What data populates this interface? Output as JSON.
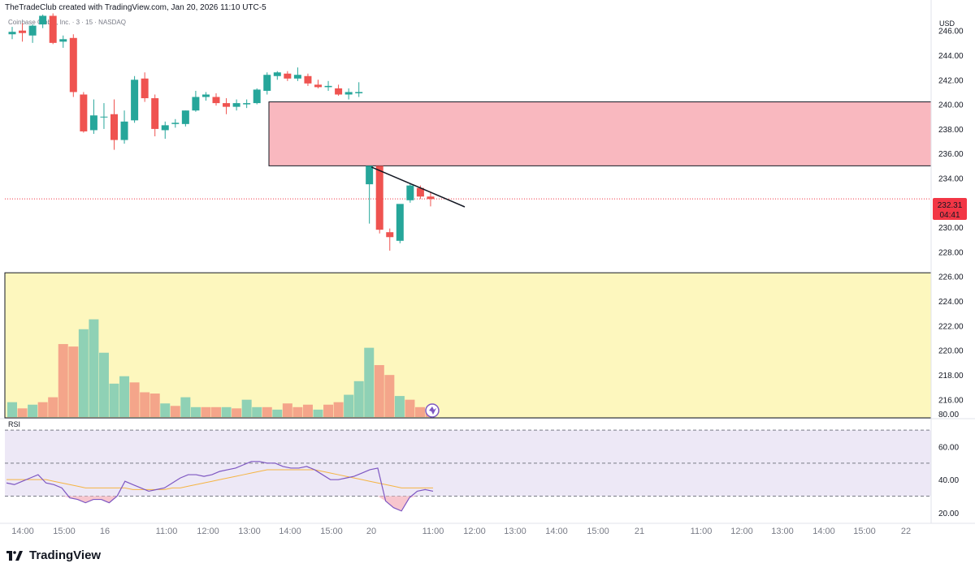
{
  "header": {
    "attribution": "TheTradeClub created with TradingView.com, Jan 20, 2026 11:10 UTC-5",
    "symbol_line": "Coinbase Global, Inc. · 3 · 15 · NASDAQ"
  },
  "footer": {
    "brand": "TradingView"
  },
  "price_axis": {
    "currency": "USD"
  },
  "rsi_panel": {
    "label": "RSI"
  },
  "colors": {
    "up": "#26a69a",
    "down": "#ef5350",
    "volume_up": "#8fd1b5",
    "volume_down": "#f4a58a",
    "supply_zone": "#f9b8bf",
    "demand_zone": "#fdf7be",
    "rsi_band": "#ede8f6",
    "rsi_line": "#7e57c2",
    "rsi_ma": "#f5b443",
    "price_tag": "#f23645"
  },
  "chart_data": {
    "type": "candlestick",
    "price_ticks": [
      "246.00",
      "244.00",
      "242.00",
      "240.00",
      "238.00",
      "236.00",
      "234.00",
      "232.00",
      "230.00",
      "228.00",
      "226.00",
      "224.00",
      "222.00",
      "220.00",
      "218.00",
      "216.00"
    ],
    "price_ylim": [
      214.5,
      247.3
    ],
    "current_price": "232.31",
    "countdown": "04:41",
    "time_labels": [
      "14:00",
      "15:00",
      "16",
      "11:00",
      "12:00",
      "13:00",
      "14:00",
      "15:00",
      "20",
      "11:00",
      "12:00",
      "13:00",
      "14:00",
      "15:00",
      "21",
      "11:00",
      "12:00",
      "13:00",
      "14:00",
      "15:00",
      "22"
    ],
    "candles": [
      {
        "o": 245.7,
        "h": 246.3,
        "l": 245.3,
        "c": 245.9
      },
      {
        "o": 246.0,
        "h": 246.6,
        "l": 245.1,
        "c": 245.8
      },
      {
        "o": 245.6,
        "h": 246.5,
        "l": 245.0,
        "c": 246.4
      },
      {
        "o": 246.5,
        "h": 247.3,
        "l": 246.2,
        "c": 247.2
      },
      {
        "o": 247.2,
        "h": 247.4,
        "l": 244.9,
        "c": 245.0
      },
      {
        "o": 245.1,
        "h": 245.6,
        "l": 244.6,
        "c": 245.3
      },
      {
        "o": 245.4,
        "h": 245.7,
        "l": 240.6,
        "c": 241.0
      },
      {
        "o": 240.8,
        "h": 241.0,
        "l": 237.7,
        "c": 237.8
      },
      {
        "o": 237.9,
        "h": 240.4,
        "l": 237.6,
        "c": 239.1
      },
      {
        "o": 239.0,
        "h": 240.1,
        "l": 238.0,
        "c": 239.0
      },
      {
        "o": 239.2,
        "h": 240.4,
        "l": 236.3,
        "c": 237.1
      },
      {
        "o": 237.1,
        "h": 239.5,
        "l": 236.8,
        "c": 238.6
      },
      {
        "o": 238.7,
        "h": 242.3,
        "l": 238.5,
        "c": 242.0
      },
      {
        "o": 242.1,
        "h": 242.6,
        "l": 240.2,
        "c": 240.5
      },
      {
        "o": 240.5,
        "h": 240.8,
        "l": 237.4,
        "c": 238.0
      },
      {
        "o": 237.9,
        "h": 238.6,
        "l": 237.2,
        "c": 238.3
      },
      {
        "o": 238.4,
        "h": 238.8,
        "l": 238.1,
        "c": 238.5
      },
      {
        "o": 238.4,
        "h": 239.5,
        "l": 238.2,
        "c": 239.5
      },
      {
        "o": 239.5,
        "h": 241.1,
        "l": 239.4,
        "c": 240.6
      },
      {
        "o": 240.6,
        "h": 241.0,
        "l": 240.3,
        "c": 240.8
      },
      {
        "o": 240.6,
        "h": 240.9,
        "l": 239.9,
        "c": 240.1
      },
      {
        "o": 240.1,
        "h": 240.5,
        "l": 239.2,
        "c": 239.8
      },
      {
        "o": 239.8,
        "h": 240.4,
        "l": 239.5,
        "c": 240.1
      },
      {
        "o": 240.0,
        "h": 240.4,
        "l": 239.7,
        "c": 240.1
      },
      {
        "o": 240.1,
        "h": 241.3,
        "l": 240.0,
        "c": 241.2
      },
      {
        "o": 241.1,
        "h": 242.6,
        "l": 240.8,
        "c": 242.4
      },
      {
        "o": 242.3,
        "h": 242.7,
        "l": 242.0,
        "c": 242.6
      },
      {
        "o": 242.5,
        "h": 242.7,
        "l": 241.9,
        "c": 242.1
      },
      {
        "o": 242.1,
        "h": 243.0,
        "l": 241.9,
        "c": 242.4
      },
      {
        "o": 242.3,
        "h": 242.5,
        "l": 241.5,
        "c": 241.7
      },
      {
        "o": 241.6,
        "h": 242.0,
        "l": 241.3,
        "c": 241.4
      },
      {
        "o": 241.4,
        "h": 241.9,
        "l": 241.1,
        "c": 241.5
      },
      {
        "o": 241.3,
        "h": 241.6,
        "l": 240.7,
        "c": 240.8
      },
      {
        "o": 240.8,
        "h": 241.3,
        "l": 240.4,
        "c": 241.0
      },
      {
        "o": 240.9,
        "h": 241.8,
        "l": 240.6,
        "c": 241.0
      },
      {
        "o": 233.5,
        "h": 234.9,
        "l": 230.3,
        "c": 235.0
      },
      {
        "o": 235.0,
        "h": 235.0,
        "l": 229.5,
        "c": 229.8
      },
      {
        "o": 229.6,
        "h": 229.9,
        "l": 228.1,
        "c": 229.2
      },
      {
        "o": 228.9,
        "h": 231.8,
        "l": 228.7,
        "c": 231.9
      },
      {
        "o": 232.2,
        "h": 233.6,
        "l": 232.0,
        "c": 233.4
      },
      {
        "o": 233.2,
        "h": 233.4,
        "l": 232.3,
        "c": 232.5
      },
      {
        "o": 232.5,
        "h": 232.9,
        "l": 231.7,
        "c": 232.3
      }
    ],
    "volume": [
      {
        "v": 1.2,
        "up": true
      },
      {
        "v": 0.7,
        "up": false
      },
      {
        "v": 1.0,
        "up": true
      },
      {
        "v": 1.2,
        "up": false
      },
      {
        "v": 1.6,
        "up": false
      },
      {
        "v": 5.9,
        "up": false
      },
      {
        "v": 5.7,
        "up": false
      },
      {
        "v": 7.1,
        "up": true
      },
      {
        "v": 7.9,
        "up": true
      },
      {
        "v": 5.2,
        "up": true
      },
      {
        "v": 2.7,
        "up": true
      },
      {
        "v": 3.3,
        "up": true
      },
      {
        "v": 2.8,
        "up": false
      },
      {
        "v": 2.0,
        "up": false
      },
      {
        "v": 1.9,
        "up": false
      },
      {
        "v": 1.1,
        "up": true
      },
      {
        "v": 0.9,
        "up": false
      },
      {
        "v": 1.6,
        "up": true
      },
      {
        "v": 0.8,
        "up": true
      },
      {
        "v": 0.8,
        "up": false
      },
      {
        "v": 0.8,
        "up": false
      },
      {
        "v": 0.8,
        "up": true
      },
      {
        "v": 0.7,
        "up": false
      },
      {
        "v": 1.4,
        "up": true
      },
      {
        "v": 0.8,
        "up": true
      },
      {
        "v": 0.8,
        "up": false
      },
      {
        "v": 0.6,
        "up": true
      },
      {
        "v": 1.1,
        "up": false
      },
      {
        "v": 0.8,
        "up": false
      },
      {
        "v": 1.0,
        "up": false
      },
      {
        "v": 0.6,
        "up": true
      },
      {
        "v": 1.0,
        "up": false
      },
      {
        "v": 1.2,
        "up": false
      },
      {
        "v": 1.8,
        "up": true
      },
      {
        "v": 2.9,
        "up": true
      },
      {
        "v": 5.6,
        "up": true
      },
      {
        "v": 4.2,
        "up": false
      },
      {
        "v": 3.4,
        "up": false
      },
      {
        "v": 1.7,
        "up": true
      },
      {
        "v": 1.4,
        "up": false
      },
      {
        "v": 0.8,
        "up": false
      },
      {
        "v": 0.5,
        "up": false
      }
    ],
    "zones": [
      {
        "name": "supply",
        "top": 240.2,
        "bottom": 235.0
      },
      {
        "name": "demand",
        "top": 226.3,
        "bottom": 214.5
      }
    ],
    "trendline": {
      "from": [
        35,
        234.9
      ],
      "to": [
        43,
        232.0
      ]
    },
    "rsi": {
      "ylim": [
        15,
        75
      ],
      "ticks": [
        "80.00",
        "60.00",
        "40.00",
        "20.00"
      ],
      "tick_values": [
        80,
        60,
        40,
        20
      ],
      "levels": [
        70,
        50,
        30
      ],
      "values": [
        38,
        37,
        39,
        41,
        43,
        38,
        37,
        35,
        29,
        28,
        26,
        28,
        28,
        26,
        30,
        39,
        37,
        35,
        33,
        34,
        35,
        38,
        41,
        43,
        43,
        42,
        43,
        45,
        46,
        47,
        49,
        51,
        51,
        50,
        50,
        48,
        47,
        47,
        48,
        46,
        43,
        40,
        40,
        41,
        42,
        44,
        46,
        47,
        27,
        23,
        21,
        29,
        33,
        34,
        33
      ],
      "ma": [
        40,
        40,
        40,
        40,
        40,
        40,
        39,
        38,
        37,
        36,
        35,
        35,
        35,
        35,
        35,
        35,
        34,
        34,
        34,
        34,
        34,
        35,
        35,
        36,
        37,
        38,
        39,
        40,
        41,
        42,
        43,
        44,
        45,
        46,
        46,
        46,
        46,
        46,
        46,
        46,
        45,
        44,
        43,
        42,
        41,
        40,
        39,
        38,
        37,
        36,
        35,
        35,
        35,
        35,
        35
      ]
    }
  }
}
